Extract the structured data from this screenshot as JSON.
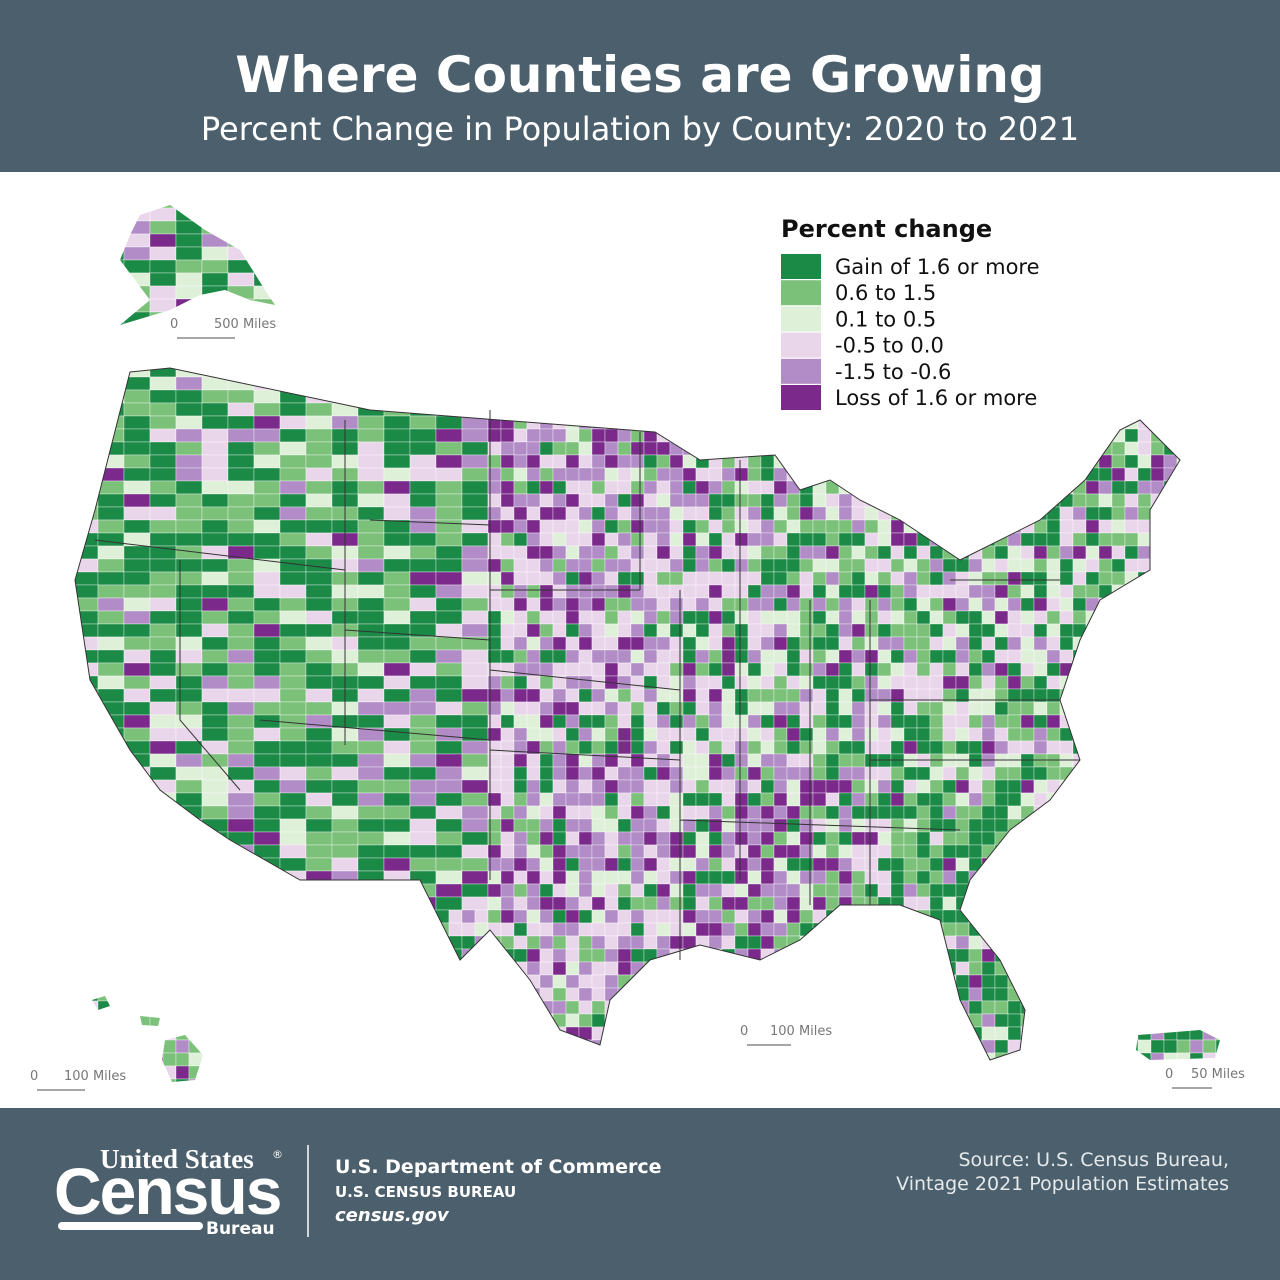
{
  "header": {
    "title": "Where Counties are Growing",
    "subtitle": "Percent Change in Population by County: 2020 to 2021"
  },
  "legend": {
    "title": "Percent change",
    "items": [
      {
        "label": "Gain of 1.6 or more",
        "color": "#1b8a46"
      },
      {
        "label": "0.6 to 1.5",
        "color": "#7cc17a"
      },
      {
        "label": "0.1 to 0.5",
        "color": "#dff0d8"
      },
      {
        "label": "-0.5 to 0.0",
        "color": "#ead6ea"
      },
      {
        "label": "-1.5 to -0.6",
        "color": "#b18cc6"
      },
      {
        "label": "Loss of 1.6 or more",
        "color": "#7b2a8c"
      }
    ]
  },
  "scale_bars": {
    "alaska": {
      "zero": "0",
      "label": "500 Miles"
    },
    "mainland": {
      "zero": "0",
      "label": "100 Miles"
    },
    "hawaii": {
      "zero": "0",
      "label": "100 Miles"
    },
    "puerto_rico": {
      "zero": "0",
      "label": "50 Miles"
    }
  },
  "footer": {
    "logo": {
      "united_states": "United States",
      "registered": "®",
      "census": "Census",
      "bureau": "Bureau"
    },
    "department": "U.S. Department of Commerce",
    "agency": "U.S. CENSUS BUREAU",
    "website": "census.gov",
    "source_line1": "Source: U.S. Census Bureau,",
    "source_line2": "Vintage 2021 Population Estimates"
  }
}
